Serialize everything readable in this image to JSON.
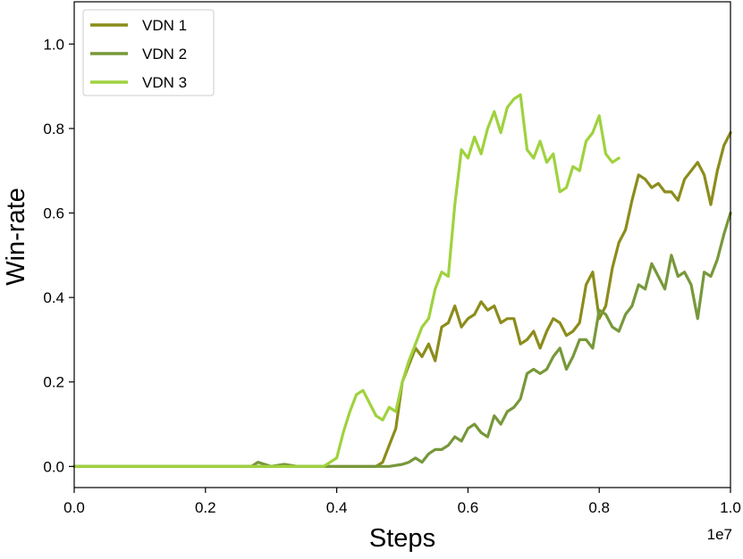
{
  "chart_data": {
    "type": "line",
    "xlabel": "Steps",
    "ylabel": "Win-rate",
    "x_offset_label": "1e7",
    "xlim": [
      0.0,
      1.0
    ],
    "ylim": [
      -0.05,
      1.1
    ],
    "xticks": [
      "0.0",
      "0.2",
      "0.4",
      "0.6",
      "0.8",
      "1.0"
    ],
    "yticks": [
      "0.0",
      "0.2",
      "0.4",
      "0.6",
      "0.8",
      "1.0"
    ],
    "legend_position": "top-left",
    "grid": false,
    "series": [
      {
        "name": "VDN 1",
        "color": "#8c8c1c",
        "x": [
          0.0,
          0.1,
          0.2,
          0.3,
          0.4,
          0.44,
          0.46,
          0.47,
          0.48,
          0.49,
          0.5,
          0.51,
          0.52,
          0.53,
          0.54,
          0.55,
          0.56,
          0.57,
          0.58,
          0.59,
          0.6,
          0.61,
          0.62,
          0.63,
          0.64,
          0.65,
          0.66,
          0.67,
          0.68,
          0.69,
          0.7,
          0.71,
          0.72,
          0.73,
          0.74,
          0.75,
          0.76,
          0.77,
          0.78,
          0.79,
          0.8,
          0.81,
          0.82,
          0.83,
          0.84,
          0.85,
          0.86,
          0.87,
          0.88,
          0.89,
          0.9,
          0.91,
          0.92,
          0.93,
          0.94,
          0.95,
          0.96,
          0.97,
          0.98,
          0.99,
          1.0
        ],
        "y": [
          0.0,
          0.0,
          0.0,
          0.0,
          0.0,
          0.0,
          0.0,
          0.01,
          0.05,
          0.09,
          0.2,
          0.24,
          0.28,
          0.26,
          0.29,
          0.25,
          0.33,
          0.34,
          0.38,
          0.33,
          0.35,
          0.36,
          0.39,
          0.37,
          0.38,
          0.34,
          0.35,
          0.35,
          0.29,
          0.3,
          0.32,
          0.28,
          0.32,
          0.35,
          0.34,
          0.31,
          0.32,
          0.34,
          0.43,
          0.46,
          0.35,
          0.38,
          0.47,
          0.53,
          0.56,
          0.63,
          0.69,
          0.68,
          0.66,
          0.67,
          0.65,
          0.65,
          0.63,
          0.68,
          0.7,
          0.72,
          0.69,
          0.62,
          0.7,
          0.76,
          0.79
        ]
      },
      {
        "name": "VDN 2",
        "color": "#77983a",
        "x": [
          0.0,
          0.1,
          0.2,
          0.27,
          0.28,
          0.3,
          0.32,
          0.34,
          0.36,
          0.4,
          0.44,
          0.48,
          0.5,
          0.51,
          0.52,
          0.53,
          0.54,
          0.55,
          0.56,
          0.57,
          0.58,
          0.59,
          0.6,
          0.61,
          0.62,
          0.63,
          0.64,
          0.65,
          0.66,
          0.67,
          0.68,
          0.69,
          0.7,
          0.71,
          0.72,
          0.73,
          0.74,
          0.75,
          0.76,
          0.77,
          0.78,
          0.79,
          0.8,
          0.81,
          0.82,
          0.83,
          0.84,
          0.85,
          0.86,
          0.87,
          0.88,
          0.89,
          0.9,
          0.91,
          0.92,
          0.93,
          0.94,
          0.95,
          0.96,
          0.97,
          0.98,
          0.99,
          1.0
        ],
        "y": [
          0.0,
          0.0,
          0.0,
          0.0,
          0.01,
          0.0,
          0.005,
          0.0,
          0.0,
          0.0,
          0.0,
          0.0,
          0.005,
          0.01,
          0.02,
          0.01,
          0.03,
          0.04,
          0.04,
          0.05,
          0.07,
          0.06,
          0.09,
          0.1,
          0.08,
          0.07,
          0.12,
          0.1,
          0.13,
          0.14,
          0.16,
          0.22,
          0.23,
          0.22,
          0.23,
          0.26,
          0.28,
          0.23,
          0.26,
          0.3,
          0.3,
          0.28,
          0.37,
          0.36,
          0.33,
          0.32,
          0.36,
          0.38,
          0.43,
          0.42,
          0.48,
          0.45,
          0.42,
          0.5,
          0.45,
          0.46,
          0.43,
          0.35,
          0.46,
          0.45,
          0.49,
          0.55,
          0.6
        ]
      },
      {
        "name": "VDN 3",
        "color": "#9fd23e",
        "x": [
          0.0,
          0.1,
          0.2,
          0.3,
          0.38,
          0.4,
          0.41,
          0.42,
          0.43,
          0.44,
          0.45,
          0.46,
          0.47,
          0.48,
          0.49,
          0.5,
          0.51,
          0.52,
          0.53,
          0.54,
          0.55,
          0.56,
          0.57,
          0.58,
          0.59,
          0.6,
          0.61,
          0.62,
          0.63,
          0.64,
          0.65,
          0.66,
          0.67,
          0.68,
          0.69,
          0.7,
          0.71,
          0.72,
          0.73,
          0.74,
          0.75,
          0.76,
          0.77,
          0.78,
          0.79,
          0.8,
          0.81,
          0.82,
          0.83
        ],
        "y": [
          0.0,
          0.0,
          0.0,
          0.0,
          0.0,
          0.02,
          0.08,
          0.13,
          0.17,
          0.18,
          0.15,
          0.12,
          0.11,
          0.14,
          0.13,
          0.2,
          0.25,
          0.29,
          0.33,
          0.35,
          0.42,
          0.46,
          0.45,
          0.62,
          0.75,
          0.73,
          0.78,
          0.74,
          0.8,
          0.84,
          0.79,
          0.85,
          0.87,
          0.88,
          0.75,
          0.73,
          0.77,
          0.72,
          0.74,
          0.65,
          0.66,
          0.71,
          0.7,
          0.77,
          0.79,
          0.83,
          0.74,
          0.72,
          0.73
        ]
      }
    ]
  }
}
